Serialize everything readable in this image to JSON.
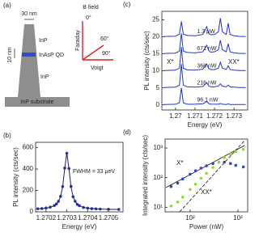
{
  "diagram": {
    "label": "(a)",
    "width": "30 nm",
    "top": "InP",
    "dot": "InAsP QD",
    "height": "10 nm",
    "bottom": "InP",
    "substrate": "InP substrate",
    "field": "B field",
    "a0": "0°",
    "a60": "60°",
    "a90": "90°",
    "faraday": "Faraday",
    "voigt": "Voigt"
  },
  "chart_data": [
    {
      "type": "scatter",
      "label": "(b)",
      "xlabel": "Energy (eV)",
      "ylabel": "PL intensity (cts/sec)",
      "annotation": "FWHM = 33   μeV",
      "x": [
        1.27016,
        1.27018,
        1.2702,
        1.27022,
        1.27024,
        1.27025,
        1.27026,
        1.27027,
        1.27028,
        1.27029,
        1.2703,
        1.27031,
        1.27032,
        1.27033,
        1.27034,
        1.27035,
        1.27036,
        1.27038,
        1.2704,
        1.27042,
        1.27044,
        1.27046,
        1.2705,
        1.27055
      ],
      "series": [
        {
          "color": "#2a3fb3",
          "mode": "markers",
          "values": [
            29,
            31,
            36,
            44,
            59,
            74,
            99,
            145,
            236,
            410,
            548,
            405,
            238,
            141,
            99,
            70,
            58,
            41,
            35,
            30,
            28,
            26,
            24,
            23
          ]
        },
        {
          "color": "#1c1c6e",
          "mode": "line",
          "values": [
            27,
            30,
            34,
            42,
            57,
            72,
            97,
            143,
            235,
            408,
            550,
            408,
            235,
            143,
            97,
            72,
            57,
            42,
            34,
            30,
            27,
            26,
            24,
            23
          ]
        }
      ],
      "xlim": [
        1.27015,
        1.27057
      ],
      "xticks": [
        1.2702,
        1.2703,
        1.2704,
        1.2705
      ],
      "ylim": [
        0,
        650
      ],
      "yticks": [
        0,
        200,
        400,
        600
      ]
    },
    {
      "type": "line",
      "label": "(c)",
      "xlabel": "Energy (eV)",
      "ylabel": "PL intensity (cts/sec)",
      "annotations": [
        "X*",
        "XX*"
      ],
      "x": [
        1.2694,
        1.27,
        1.2702,
        1.2703,
        1.2704,
        1.2706,
        1.271,
        1.2714,
        1.2716,
        1.2717,
        1.2718,
        1.272,
        1.2722,
        1.2723,
        1.2724,
        1.2726,
        1.2727,
        1.2728,
        1.273,
        1.2733,
        1.2736
      ],
      "series": [
        {
          "name": "1.3  μW",
          "color": "#2233cc",
          "values": [
            20.1,
            20.2,
            20.8,
            24.5,
            20.8,
            20.4,
            20.3,
            20.7,
            23,
            21,
            20.6,
            20.7,
            21.5,
            25.5,
            21.5,
            20.7,
            24,
            20.7,
            20.3,
            20.1,
            20.1
          ]
        },
        {
          "name": "671 nW",
          "color": "#2233cc",
          "values": [
            15.1,
            15.2,
            15.8,
            21,
            15.8,
            15.4,
            15.3,
            15.6,
            17.5,
            16,
            15.5,
            15.6,
            16.2,
            19,
            16.2,
            15.6,
            18,
            15.6,
            15.3,
            15.1,
            15.1
          ]
        },
        {
          "name": "368 nW",
          "color": "#2233cc",
          "values": [
            10.1,
            10.2,
            10.8,
            17,
            10.8,
            10.3,
            10.2,
            10.5,
            12,
            10.7,
            10.4,
            10.4,
            10.8,
            12.5,
            10.8,
            10.4,
            11.5,
            10.4,
            10.2,
            10.1,
            10.1
          ]
        },
        {
          "name": "216 nW",
          "color": "#2233cc",
          "values": [
            5.1,
            5.2,
            5.8,
            12,
            5.8,
            5.3,
            5.2,
            5.4,
            6.5,
            5.6,
            5.3,
            5.3,
            5.5,
            6.2,
            5.5,
            5.3,
            5.8,
            5.3,
            5.2,
            5.1,
            5.1
          ]
        },
        {
          "name": "96.1 nW",
          "color": "#2233cc",
          "values": [
            0.1,
            0.2,
            0.6,
            5,
            0.6,
            0.2,
            0.2,
            0.3,
            1,
            0.4,
            0.2,
            0.2,
            0.2,
            0.4,
            0.2,
            0.1,
            0.3,
            0.1,
            0.1,
            0.1,
            0.1
          ]
        }
      ],
      "xlim": [
        1.2693,
        1.2737
      ],
      "xticks": [
        1.27,
        1.271,
        1.272,
        1.273
      ],
      "ylim": [
        -1.5,
        27.5
      ],
      "yticks": [
        0,
        5,
        10,
        15,
        20,
        25
      ]
    },
    {
      "type": "scatter",
      "label": "(d)",
      "xlabel": "Power (nW)",
      "ylabel": "Integrated intensity (cts/sec)",
      "annotations": [
        "X*",
        "XX*"
      ],
      "log": true,
      "x": [
        40,
        55,
        70,
        100,
        130,
        170,
        220,
        300,
        400,
        520,
        700,
        900,
        1300
      ],
      "series": [
        {
          "color": "#3344cc",
          "values": [
            50,
            65,
            90,
            130,
            170,
            210,
            250,
            300,
            330,
            330,
            300,
            260,
            230
          ]
        },
        {
          "color": "#88dd33",
          "values": [
            11,
            15,
            22,
            40,
            60,
            95,
            140,
            220,
            330,
            470,
            620,
            750,
            900
          ]
        }
      ],
      "xlim": [
        30,
        1600
      ],
      "xticks": [
        {
          "value": 100,
          "label": "10²"
        },
        {
          "value": 1000,
          "label": "10³"
        }
      ],
      "ylim": [
        7,
        2000
      ],
      "yticks": [
        {
          "value": 10,
          "label": "10¹"
        },
        {
          "value": 100,
          "label": "10²"
        },
        {
          "value": 1000,
          "label": "10³"
        }
      ]
    }
  ]
}
